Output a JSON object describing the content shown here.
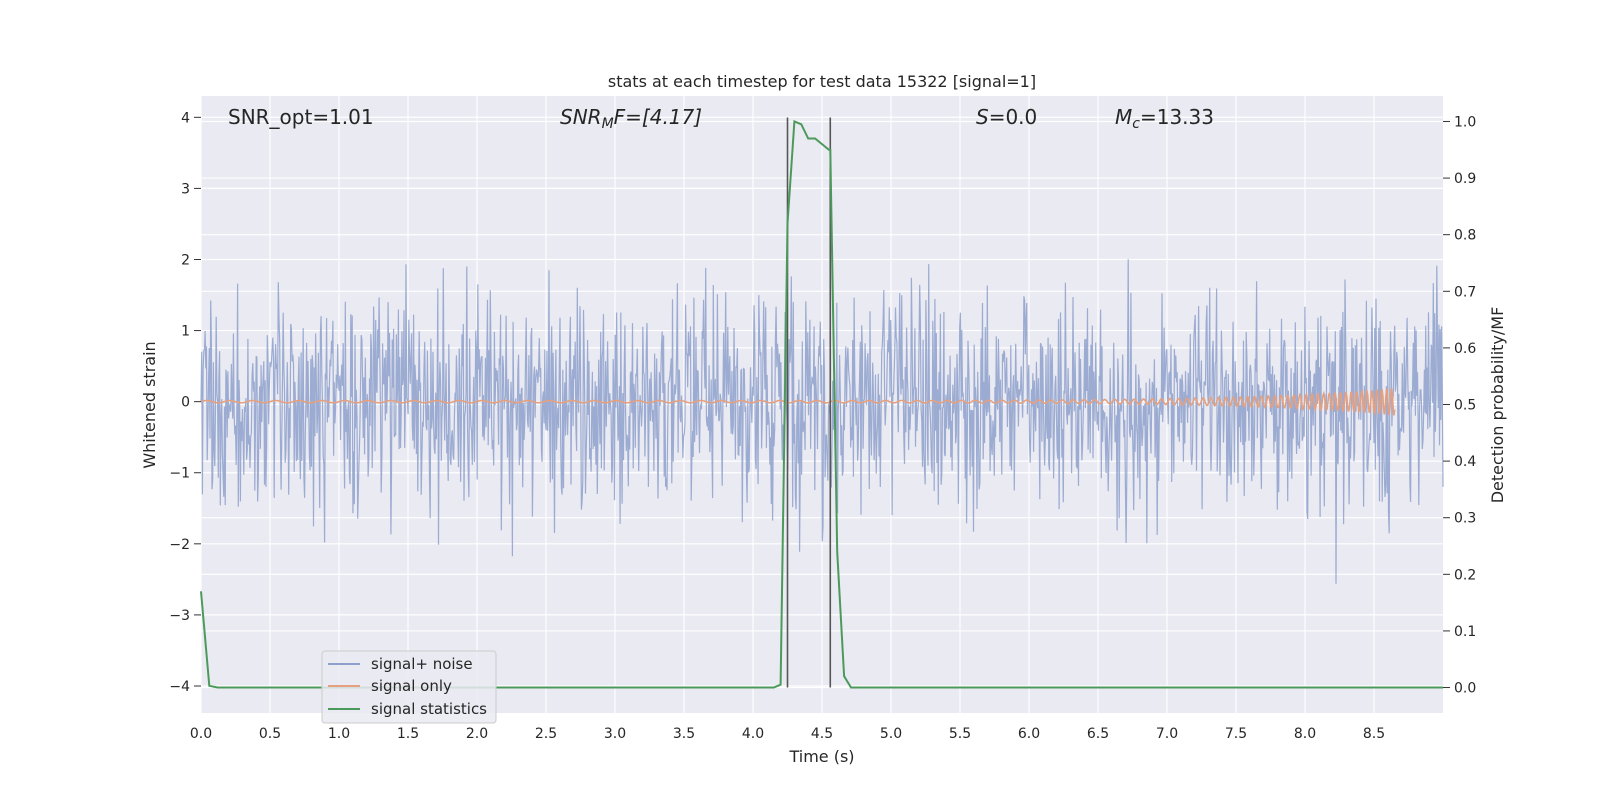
{
  "chart_data": {
    "type": "line",
    "title": "stats at each timestep for test data 15322 [signal=1]",
    "xlabel": "Time (s)",
    "ylabel_left": "Whitened strain",
    "ylabel_right": "Detection probability/MF",
    "xlim": [
      0,
      9.0
    ],
    "ylim_left": [
      -4.38,
      4.3
    ],
    "ylim_right": [
      -0.045,
      1.045
    ],
    "grid": true,
    "legend_position": "lower-left",
    "x_ticks": [
      "0.0",
      "0.5",
      "1.0",
      "1.5",
      "2.0",
      "2.5",
      "3.0",
      "3.5",
      "4.0",
      "4.5",
      "5.0",
      "5.5",
      "6.0",
      "6.5",
      "7.0",
      "7.5",
      "8.0",
      "8.5"
    ],
    "y_left_ticks": [
      "4",
      "3",
      "2",
      "1",
      "0",
      "−1",
      "−2",
      "−3",
      "−4"
    ],
    "y_right_ticks": [
      "1.0",
      "0.9",
      "0.8",
      "0.7",
      "0.6",
      "0.5",
      "0.4",
      "0.3",
      "0.2",
      "0.1",
      "0.0"
    ],
    "annotations": {
      "snr_opt": "SNR_opt=1.01",
      "snr_mf_base": "SNR",
      "snr_mf_sub": "M",
      "snr_mf_rest": "F=[4.17]",
      "s_var": "S",
      "s_rest": "=0.0",
      "mc_var": "M",
      "mc_sub": "c",
      "mc_rest": "=13.33"
    },
    "series": [
      {
        "name": "signal+ noise",
        "color": "#8da0cb",
        "axis": "left",
        "description_of_values": "whitened noise samples, approx. Gaussian, roughly within [-4, 3.7]",
        "sample_count": 1800,
        "seed": 15322
      },
      {
        "name": "signal only",
        "color": "#e5a07f",
        "axis": "left",
        "x_end": 8.65,
        "max_amplitude": 0.18
      },
      {
        "name": "signal statistics",
        "color": "#4c9a5b",
        "axis": "right",
        "x": [
          0.0,
          0.06,
          0.12,
          0.2,
          4.15,
          4.2,
          4.25,
          4.3,
          4.35,
          4.4,
          4.45,
          4.5,
          4.55,
          4.56,
          4.61,
          4.66,
          4.71,
          5.0,
          9.0
        ],
        "y": [
          0.17,
          0.003,
          0.0,
          0.0,
          0.0,
          0.005,
          0.82,
          1.0,
          0.995,
          0.97,
          0.97,
          0.96,
          0.95,
          0.95,
          0.24,
          0.02,
          0.0,
          0.0,
          0.0
        ]
      }
    ],
    "vlines": [
      4.25,
      4.56
    ],
    "vline_color": "#555555"
  }
}
